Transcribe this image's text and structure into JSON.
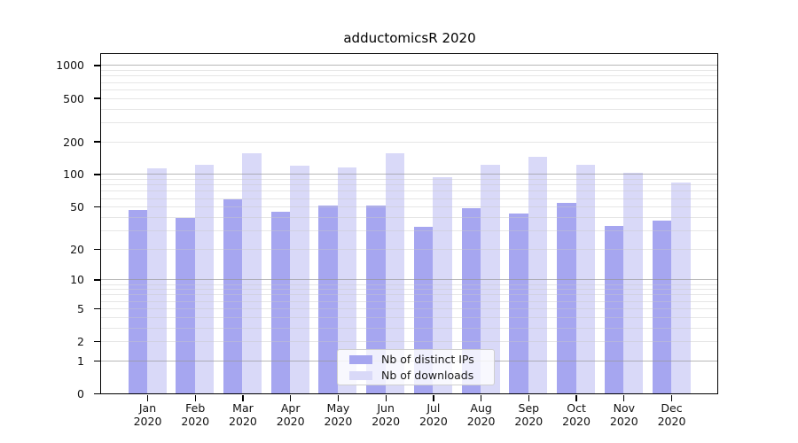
{
  "chart_data": {
    "type": "bar",
    "title": "adductomicsR 2020",
    "categories": [
      "Jan 2020",
      "Feb 2020",
      "Mar 2020",
      "Apr 2020",
      "May 2020",
      "Jun 2020",
      "Jul 2020",
      "Aug 2020",
      "Sep 2020",
      "Oct 2020",
      "Nov 2020",
      "Dec 2020"
    ],
    "series": [
      {
        "name": "Nb of distinct IPs",
        "color": "#a6a6f0",
        "values": [
          46,
          39,
          58,
          45,
          51,
          51,
          32,
          48,
          43,
          54,
          33,
          37
        ]
      },
      {
        "name": "Nb of downloads",
        "color": "#d9d9f8",
        "values": [
          114,
          121,
          154,
          120,
          115,
          156,
          93,
          121,
          145,
          121,
          102,
          83
        ]
      }
    ],
    "yscale": "log1p",
    "ylim": [
      0,
      1300
    ],
    "yticks": [
      0,
      1,
      2,
      5,
      10,
      20,
      50,
      100,
      200,
      500,
      1000
    ],
    "yticks_major_grid": [
      1,
      10,
      100,
      1000
    ],
    "yticks_minor": [
      3,
      4,
      6,
      7,
      8,
      9,
      30,
      40,
      60,
      70,
      80,
      90,
      300,
      400,
      600,
      700,
      800,
      900
    ],
    "grid": true,
    "legend_position": "lower center",
    "colors": {
      "spine": "#000000",
      "text": "#151515"
    }
  }
}
